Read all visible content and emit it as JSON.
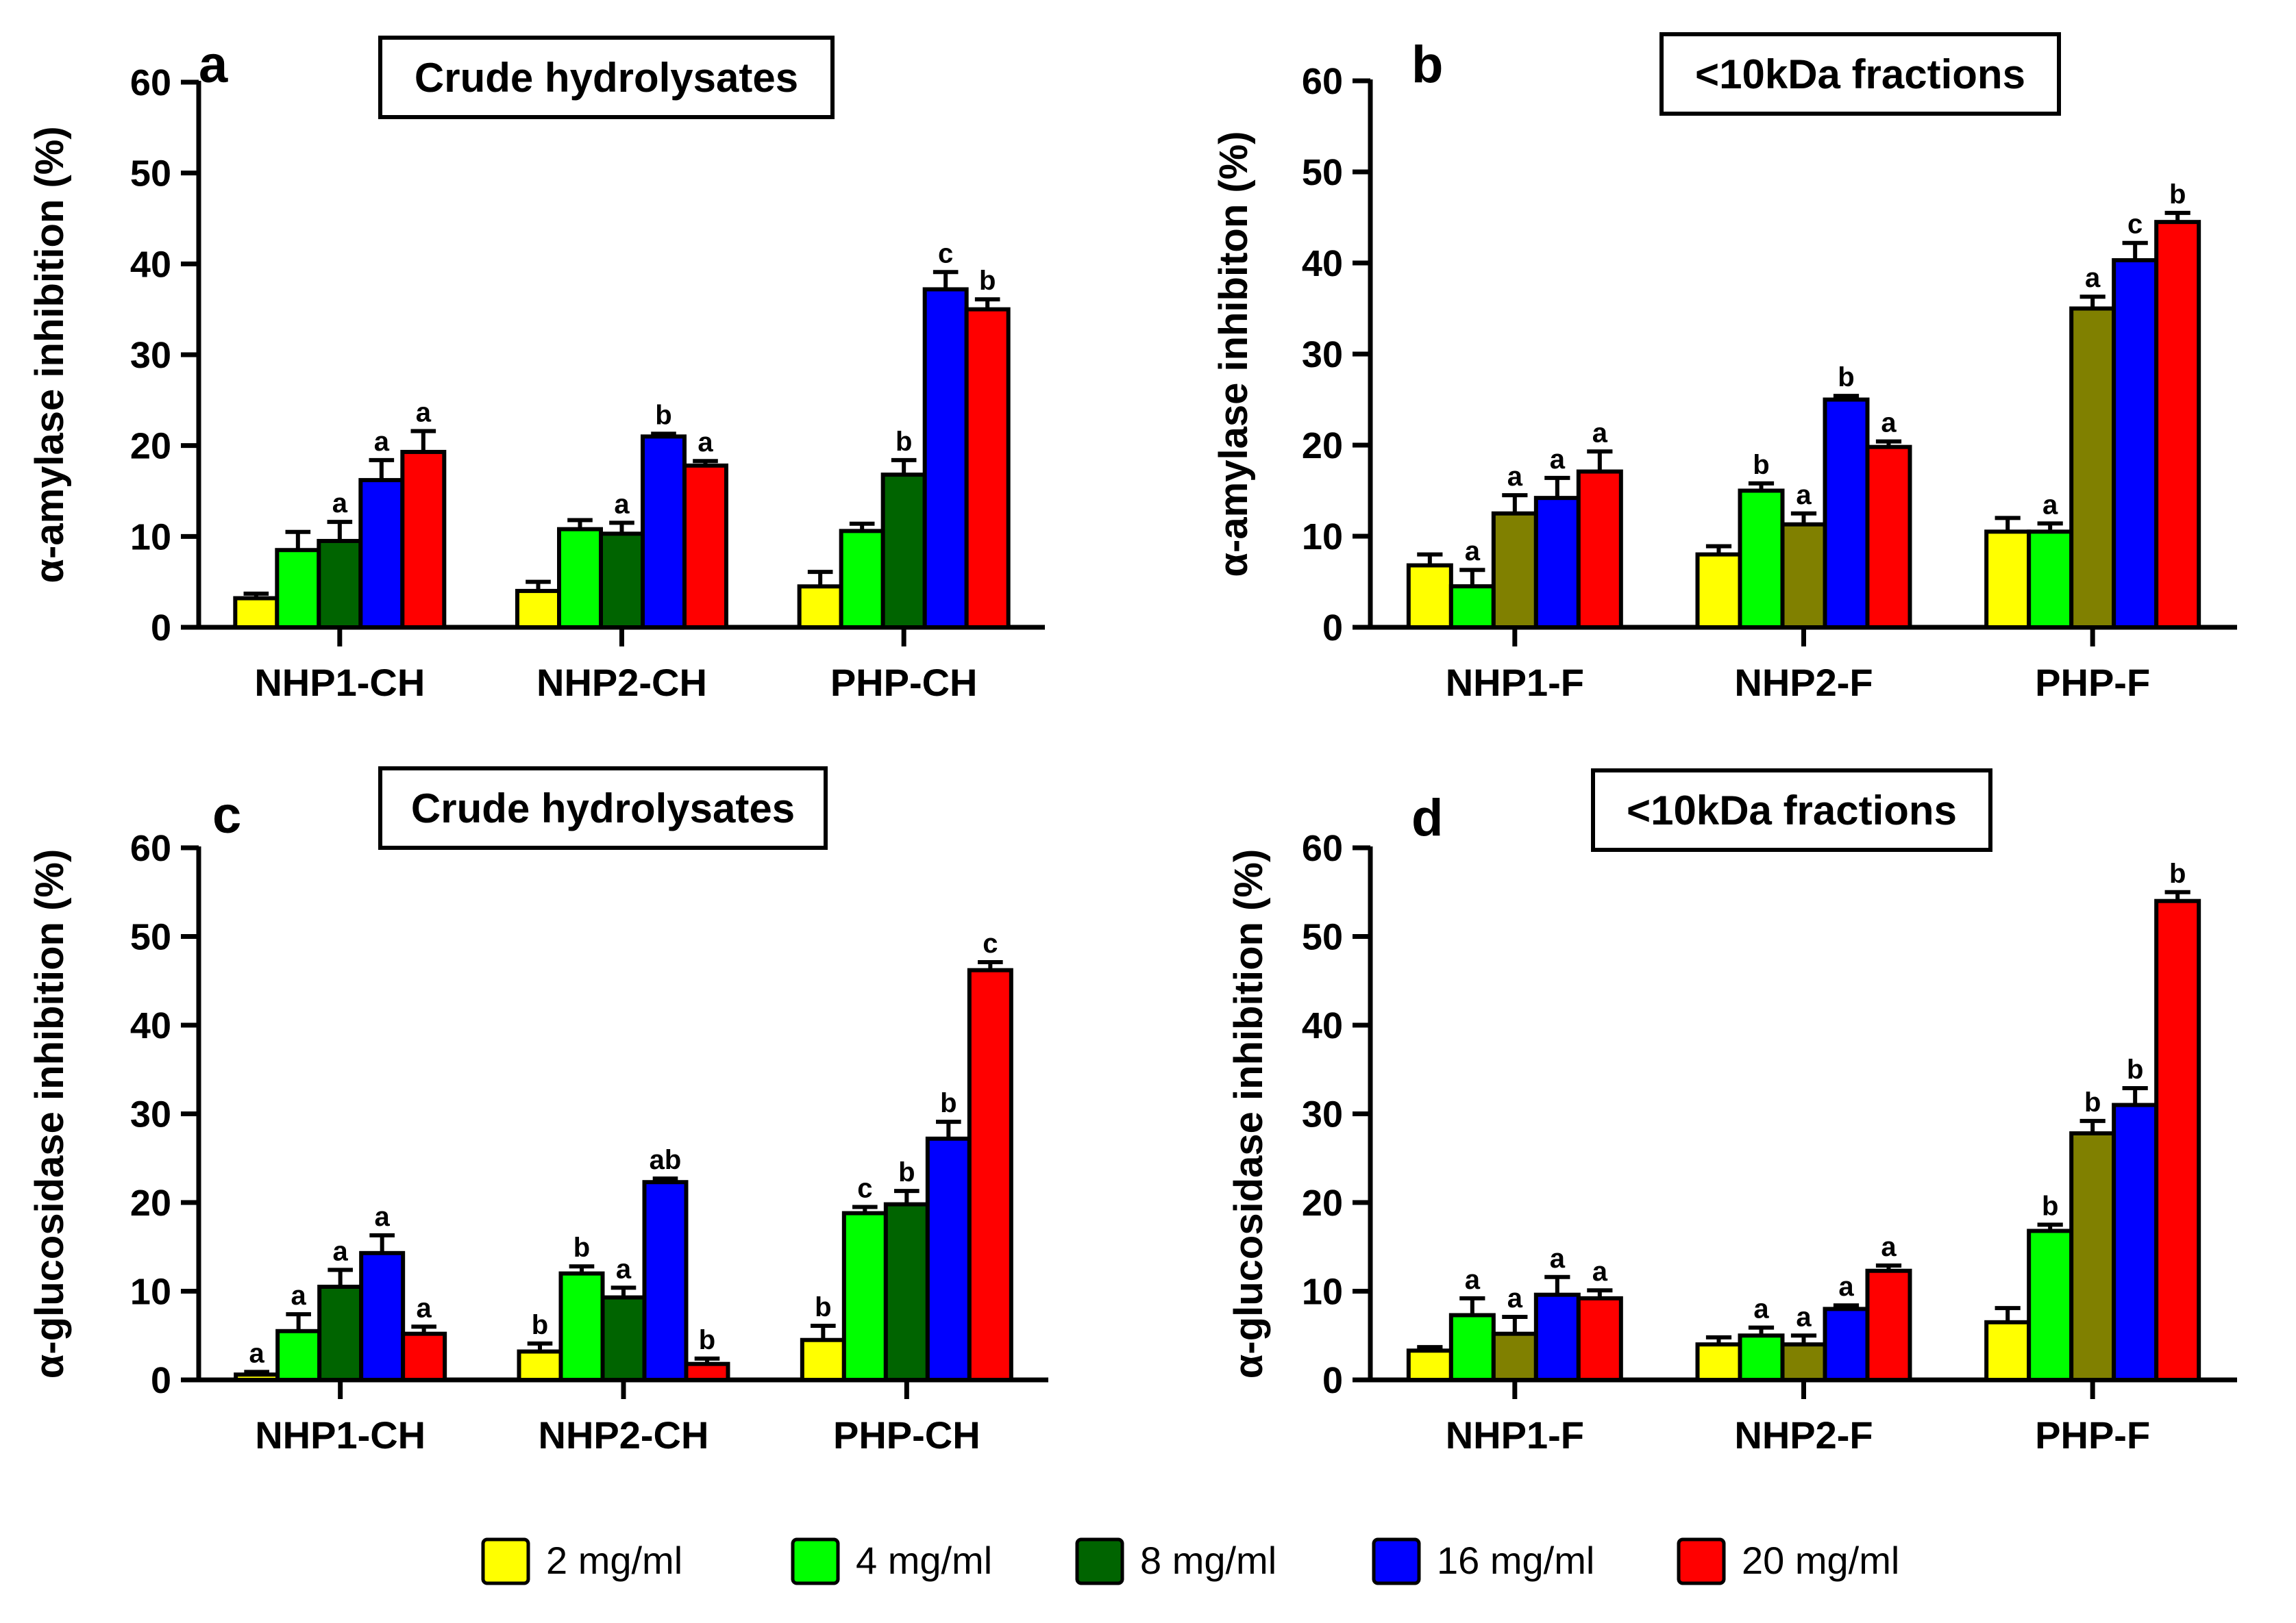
{
  "legend": {
    "items": [
      {
        "label": "2 mg/ml",
        "color": "#ffff00"
      },
      {
        "label": "4 mg/ml",
        "color": "#00ff00"
      },
      {
        "label": "8 mg/ml",
        "color": "#006400"
      },
      {
        "label": "16 mg/ml",
        "color": "#0000ff"
      },
      {
        "label": "20 mg/ml",
        "color": "#ff0000"
      }
    ]
  },
  "chart_data": [
    {
      "type": "bar",
      "panel": "a",
      "title": "Crude hydrolysates",
      "xlabel": "",
      "ylabel": "α-amylase inhibition (%)",
      "ylim": [
        0,
        60
      ],
      "yticks": [
        "0",
        "10",
        "20",
        "30",
        "40",
        "50",
        "60"
      ],
      "categories": [
        "NHP1-CH",
        "NHP2-CH",
        "PHP-CH"
      ],
      "series": [
        {
          "name": "2 mg/ml",
          "color": "#ffff00",
          "values": [
            3.2,
            4.0,
            4.5
          ],
          "errors": [
            0.5,
            1.0,
            1.6
          ],
          "letters": [
            "",
            "",
            ""
          ]
        },
        {
          "name": "4 mg/ml",
          "color": "#00ff00",
          "values": [
            8.5,
            10.8,
            10.6
          ],
          "errors": [
            2.0,
            1.0,
            0.8
          ],
          "letters": [
            "",
            "",
            ""
          ]
        },
        {
          "name": "8 mg/ml",
          "color": "#006400",
          "values": [
            9.5,
            10.3,
            16.8
          ],
          "errors": [
            2.1,
            1.2,
            1.6
          ],
          "letters": [
            "a",
            "a",
            "b"
          ]
        },
        {
          "name": "16 mg/ml",
          "color": "#0000ff",
          "values": [
            16.2,
            21.0,
            37.2
          ],
          "errors": [
            2.2,
            0.3,
            1.9
          ],
          "letters": [
            "a",
            "b",
            "c"
          ]
        },
        {
          "name": "20 mg/ml",
          "color": "#ff0000",
          "values": [
            19.3,
            17.8,
            35.0
          ],
          "errors": [
            2.3,
            0.5,
            1.1
          ],
          "letters": [
            "a",
            "a",
            "b"
          ]
        }
      ]
    },
    {
      "type": "bar",
      "panel": "b",
      "title": "<10kDa fractions",
      "xlabel": "",
      "ylabel": "α-amylase inhibiton (%)",
      "ylim": [
        0,
        60
      ],
      "yticks": [
        "0",
        "10",
        "20",
        "30",
        "40",
        "50",
        "60"
      ],
      "categories": [
        "NHP1-F",
        "NHP2-F",
        "PHP-F"
      ],
      "series": [
        {
          "name": "2 mg/ml",
          "color": "#ffff00",
          "values": [
            6.8,
            8.0,
            10.5
          ],
          "errors": [
            1.2,
            0.9,
            1.5
          ],
          "letters": [
            "",
            "",
            ""
          ]
        },
        {
          "name": "4 mg/ml",
          "color": "#00ff00",
          "values": [
            4.5,
            15.0,
            10.5
          ],
          "errors": [
            1.8,
            0.8,
            0.9
          ],
          "letters": [
            "a",
            "b",
            "a"
          ]
        },
        {
          "name": "8 mg/ml",
          "color": "#808000",
          "values": [
            12.5,
            11.3,
            35.0
          ],
          "errors": [
            2.0,
            1.2,
            1.3
          ],
          "letters": [
            "a",
            "a",
            "a"
          ]
        },
        {
          "name": "16 mg/ml",
          "color": "#0000ff",
          "values": [
            14.2,
            25.0,
            40.3
          ],
          "errors": [
            2.2,
            0.4,
            1.9
          ],
          "letters": [
            "a",
            "b",
            "c"
          ]
        },
        {
          "name": "20 mg/ml",
          "color": "#ff0000",
          "values": [
            17.1,
            19.8,
            44.5
          ],
          "errors": [
            2.2,
            0.6,
            1.0
          ],
          "letters": [
            "a",
            "a",
            "b"
          ]
        }
      ]
    },
    {
      "type": "bar",
      "panel": "c",
      "title": "Crude hydrolysates",
      "xlabel": "",
      "ylabel": "α-glucosidase inhibition (%)",
      "ylim": [
        0,
        60
      ],
      "yticks": [
        "0",
        "10",
        "20",
        "30",
        "40",
        "50",
        "60"
      ],
      "categories": [
        "NHP1-CH",
        "NHP2-CH",
        "PHP-CH"
      ],
      "series": [
        {
          "name": "2 mg/ml",
          "color": "#ffff00",
          "values": [
            0.6,
            3.2,
            4.5
          ],
          "errors": [
            0.3,
            0.9,
            1.6
          ],
          "letters": [
            "a",
            "b",
            "b"
          ]
        },
        {
          "name": "4 mg/ml",
          "color": "#00ff00",
          "values": [
            5.5,
            12.0,
            18.8
          ],
          "errors": [
            1.9,
            0.8,
            0.7
          ],
          "letters": [
            "a",
            "b",
            "c"
          ]
        },
        {
          "name": "8 mg/ml",
          "color": "#006400",
          "values": [
            10.5,
            9.3,
            19.8
          ],
          "errors": [
            1.9,
            1.1,
            1.5
          ],
          "letters": [
            "a",
            "a",
            "b"
          ]
        },
        {
          "name": "16 mg/ml",
          "color": "#0000ff",
          "values": [
            14.3,
            22.3,
            27.2
          ],
          "errors": [
            2.0,
            0.4,
            1.9
          ],
          "letters": [
            "a",
            "ab",
            "b"
          ]
        },
        {
          "name": "20 mg/ml",
          "color": "#ff0000",
          "values": [
            5.2,
            1.8,
            46.2
          ],
          "errors": [
            0.8,
            0.6,
            0.9
          ],
          "letters": [
            "a",
            "b",
            "c"
          ]
        }
      ]
    },
    {
      "type": "bar",
      "panel": "d",
      "title": "<10kDa fractions",
      "xlabel": "",
      "ylabel": "α-glucosidase inhibition (%)",
      "ylim": [
        0,
        60
      ],
      "yticks": [
        "0",
        "10",
        "20",
        "30",
        "40",
        "50",
        "60"
      ],
      "categories": [
        "NHP1-F",
        "NHP2-F",
        "PHP-F"
      ],
      "series": [
        {
          "name": "2 mg/ml",
          "color": "#ffff00",
          "values": [
            3.3,
            4.0,
            6.5
          ],
          "errors": [
            0.4,
            0.8,
            1.6
          ],
          "letters": [
            "",
            "",
            ""
          ]
        },
        {
          "name": "4 mg/ml",
          "color": "#00ff00",
          "values": [
            7.3,
            5.0,
            16.8
          ],
          "errors": [
            1.9,
            0.9,
            0.7
          ],
          "letters": [
            "a",
            "a",
            "b"
          ]
        },
        {
          "name": "8 mg/ml",
          "color": "#808000",
          "values": [
            5.2,
            4.0,
            27.8
          ],
          "errors": [
            1.9,
            1.0,
            1.4
          ],
          "letters": [
            "a",
            "a",
            "b"
          ]
        },
        {
          "name": "16 mg/ml",
          "color": "#0000ff",
          "values": [
            9.6,
            8.0,
            31.0
          ],
          "errors": [
            2.0,
            0.4,
            1.9
          ],
          "letters": [
            "a",
            "a",
            "b"
          ]
        },
        {
          "name": "20 mg/ml",
          "color": "#ff0000",
          "values": [
            9.2,
            12.3,
            54.0
          ],
          "errors": [
            0.9,
            0.6,
            1.0
          ],
          "letters": [
            "a",
            "a",
            "b"
          ]
        }
      ]
    }
  ]
}
